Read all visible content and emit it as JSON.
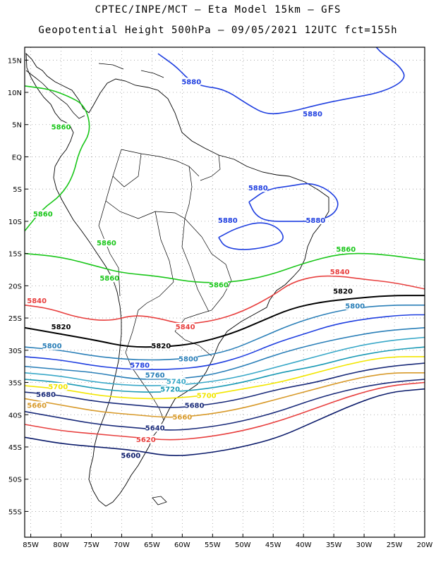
{
  "header": {
    "line1": "CPTEC/INPE/MCT  –  Eta Model 15km  –  GFS",
    "line2": "Geopotential Height 500hPa – 09/05/2021 12UTC fct=155h"
  },
  "axes": {
    "x_ticks": [
      "85W",
      "80W",
      "75W",
      "70W",
      "65W",
      "60W",
      "55W",
      "50W",
      "45W",
      "40W",
      "35W",
      "30W",
      "25W",
      "20W"
    ],
    "y_ticks": [
      "15N",
      "10N",
      "5N",
      "EQ",
      "5S",
      "10S",
      "15S",
      "20S",
      "25S",
      "30S",
      "35S",
      "40S",
      "45S",
      "50S",
      "55S"
    ],
    "lon_range": [
      -86,
      -20
    ],
    "lat_range": [
      17,
      -59
    ]
  },
  "colors": {
    "5880": "#1f3fe0",
    "5860": "#19c619",
    "5840": "#e8403f",
    "5820": "#000000",
    "5800": "#2a7fb8",
    "5780": "#1f3fe0",
    "5760": "#2a7fb8",
    "5740": "#39a8c8",
    "5720": "#1a9ab5",
    "5700": "#f2e600",
    "5680": "#1a2b7a",
    "5660": "#d89a2a",
    "5640": "#1a2b7a",
    "5620": "#e8403f",
    "5600": "#0a1a6a"
  },
  "chart_data": {
    "type": "contour-map",
    "variable": "Geopotential Height 500hPa",
    "contours": [
      {
        "level": 5880,
        "label": "5880",
        "points": [
          [
            -64,
            16
          ],
          [
            -61,
            14
          ],
          [
            -59,
            12
          ],
          [
            -57,
            11
          ],
          [
            -53,
            10.5
          ],
          [
            -49,
            8
          ],
          [
            -46,
            6.5
          ],
          [
            -42,
            7
          ],
          [
            -38,
            8
          ],
          [
            -33,
            9
          ],
          [
            -27,
            10
          ],
          [
            -23,
            12
          ],
          [
            -24,
            14
          ],
          [
            -27,
            16
          ],
          [
            -28,
            17
          ]
        ]
      },
      {
        "level": 5880,
        "label": "5880",
        "points": [
          [
            -49,
            -7
          ],
          [
            -46,
            -5
          ],
          [
            -42,
            -4.5
          ],
          [
            -39,
            -4
          ],
          [
            -36,
            -5
          ],
          [
            -34,
            -7
          ],
          [
            -35,
            -9
          ],
          [
            -38,
            -10
          ],
          [
            -42,
            -10
          ],
          [
            -46,
            -10
          ],
          [
            -48,
            -9
          ],
          [
            -49,
            -7
          ]
        ]
      },
      {
        "level": 5880,
        "label": "5880",
        "points": [
          [
            -54,
            -12.5
          ],
          [
            -51,
            -11
          ],
          [
            -47,
            -10
          ],
          [
            -44,
            -11
          ],
          [
            -43,
            -13
          ],
          [
            -46,
            -14
          ],
          [
            -50,
            -14.5
          ],
          [
            -53,
            -14
          ],
          [
            -54,
            -12.5
          ]
        ]
      },
      {
        "level": 5860,
        "label": "5860",
        "points": [
          [
            -86,
            11
          ],
          [
            -82,
            10.5
          ],
          [
            -79,
            9.5
          ],
          [
            -76,
            8
          ],
          [
            -75,
            4
          ],
          [
            -77,
            1
          ],
          [
            -78,
            -3
          ],
          [
            -80,
            -6
          ],
          [
            -83,
            -8
          ],
          [
            -86,
            -11.5
          ]
        ]
      },
      {
        "level": 5860,
        "label": "5860",
        "points": [
          [
            -86,
            -15
          ],
          [
            -80,
            -15.5
          ],
          [
            -74,
            -17
          ],
          [
            -70,
            -18
          ],
          [
            -64,
            -18.5
          ],
          [
            -58,
            -19.5
          ],
          [
            -52,
            -19.5
          ],
          [
            -46,
            -18.5
          ],
          [
            -40,
            -16.5
          ],
          [
            -34,
            -15
          ],
          [
            -28,
            -15
          ],
          [
            -20,
            -16
          ]
        ]
      },
      {
        "level": 5840,
        "label": "5840",
        "points": [
          [
            -86,
            -23
          ],
          [
            -82,
            -23.5
          ],
          [
            -77,
            -25
          ],
          [
            -72,
            -25.5
          ],
          [
            -68,
            -24.5
          ],
          [
            -64,
            -25
          ],
          [
            -60,
            -26
          ],
          [
            -55,
            -25.5
          ],
          [
            -50,
            -24
          ],
          [
            -45,
            -21.5
          ],
          [
            -42,
            -19.5
          ],
          [
            -38,
            -18.5
          ],
          [
            -34,
            -18.5
          ],
          [
            -30,
            -19
          ],
          [
            -25,
            -19.5
          ],
          [
            -20,
            -20.5
          ]
        ]
      },
      {
        "level": 5820,
        "label": "5820",
        "points": [
          [
            -86,
            -26.5
          ],
          [
            -80,
            -27.5
          ],
          [
            -74,
            -28.5
          ],
          [
            -69,
            -29.5
          ],
          [
            -63,
            -29.5
          ],
          [
            -58,
            -29
          ],
          [
            -52,
            -27.5
          ],
          [
            -47,
            -25.5
          ],
          [
            -42,
            -23.5
          ],
          [
            -37,
            -22.5
          ],
          [
            -32,
            -22
          ],
          [
            -26,
            -21.5
          ],
          [
            -20,
            -21.5
          ]
        ]
      },
      {
        "level": 5800,
        "label": "5800",
        "points": [
          [
            -86,
            -29.5
          ],
          [
            -80,
            -30
          ],
          [
            -74,
            -31
          ],
          [
            -68,
            -31.5
          ],
          [
            -62,
            -31.5
          ],
          [
            -57,
            -31
          ],
          [
            -52,
            -30
          ],
          [
            -47,
            -28
          ],
          [
            -42,
            -26
          ],
          [
            -37,
            -24.5
          ],
          [
            -32,
            -23.5
          ],
          [
            -26,
            -23
          ],
          [
            -20,
            -23
          ]
        ]
      },
      {
        "level": 5780,
        "label": "5780",
        "points": [
          [
            -86,
            -31
          ],
          [
            -80,
            -31.5
          ],
          [
            -74,
            -32.5
          ],
          [
            -68,
            -33
          ],
          [
            -62,
            -33
          ],
          [
            -56,
            -32.5
          ],
          [
            -50,
            -31
          ],
          [
            -45,
            -29
          ],
          [
            -40,
            -27.5
          ],
          [
            -35,
            -26
          ],
          [
            -29,
            -25
          ],
          [
            -23,
            -24.5
          ],
          [
            -20,
            -24.5
          ]
        ]
      },
      {
        "level": 5760,
        "label": "5760",
        "points": [
          [
            -86,
            -32.5
          ],
          [
            -80,
            -33
          ],
          [
            -74,
            -33.5
          ],
          [
            -68,
            -34.5
          ],
          [
            -62,
            -34.5
          ],
          [
            -56,
            -34
          ],
          [
            -50,
            -32.5
          ],
          [
            -44,
            -30.5
          ],
          [
            -38,
            -29
          ],
          [
            -33,
            -28
          ],
          [
            -27,
            -27
          ],
          [
            -20,
            -26.5
          ]
        ]
      },
      {
        "level": 5740,
        "label": "5740",
        "points": [
          [
            -86,
            -33.5
          ],
          [
            -80,
            -34
          ],
          [
            -74,
            -35
          ],
          [
            -68,
            -35.5
          ],
          [
            -62,
            -35.5
          ],
          [
            -56,
            -35
          ],
          [
            -50,
            -34
          ],
          [
            -44,
            -32.5
          ],
          [
            -38,
            -31
          ],
          [
            -32,
            -29.5
          ],
          [
            -26,
            -28.5
          ],
          [
            -20,
            -28
          ]
        ]
      },
      {
        "level": 5720,
        "label": "5720",
        "points": [
          [
            -86,
            -34.5
          ],
          [
            -80,
            -35
          ],
          [
            -74,
            -36
          ],
          [
            -68,
            -36.5
          ],
          [
            -62,
            -36.5
          ],
          [
            -56,
            -36
          ],
          [
            -50,
            -35
          ],
          [
            -44,
            -33.5
          ],
          [
            -38,
            -32.5
          ],
          [
            -32,
            -31
          ],
          [
            -26,
            -30
          ],
          [
            -20,
            -29.5
          ]
        ]
      },
      {
        "level": 5700,
        "label": "5700",
        "points": [
          [
            -86,
            -35.5
          ],
          [
            -80,
            -36
          ],
          [
            -74,
            -37
          ],
          [
            -68,
            -37.5
          ],
          [
            -62,
            -37.5
          ],
          [
            -56,
            -37
          ],
          [
            -50,
            -36
          ],
          [
            -44,
            -35
          ],
          [
            -38,
            -33.5
          ],
          [
            -32,
            -32
          ],
          [
            -26,
            -31
          ],
          [
            -20,
            -31
          ]
        ]
      },
      {
        "level": 5680,
        "label": "5680",
        "points": [
          [
            -86,
            -36.5
          ],
          [
            -80,
            -37
          ],
          [
            -74,
            -38
          ],
          [
            -68,
            -38.5
          ],
          [
            -62,
            -39
          ],
          [
            -56,
            -38.5
          ],
          [
            -50,
            -37.5
          ],
          [
            -44,
            -36
          ],
          [
            -38,
            -35
          ],
          [
            -32,
            -33.5
          ],
          [
            -26,
            -32.5
          ],
          [
            -20,
            -32
          ]
        ]
      },
      {
        "level": 5660,
        "label": "5660",
        "points": [
          [
            -86,
            -37.5
          ],
          [
            -80,
            -38.5
          ],
          [
            -74,
            -39.5
          ],
          [
            -68,
            -40
          ],
          [
            -62,
            -40.5
          ],
          [
            -56,
            -40
          ],
          [
            -50,
            -39
          ],
          [
            -44,
            -37.5
          ],
          [
            -38,
            -36
          ],
          [
            -32,
            -34.5
          ],
          [
            -26,
            -33.5
          ],
          [
            -20,
            -33.5
          ]
        ]
      },
      {
        "level": 5640,
        "label": "5640",
        "points": [
          [
            -86,
            -39.5
          ],
          [
            -80,
            -40.5
          ],
          [
            -74,
            -41.5
          ],
          [
            -68,
            -42
          ],
          [
            -62,
            -42.5
          ],
          [
            -56,
            -42
          ],
          [
            -50,
            -41
          ],
          [
            -44,
            -39.5
          ],
          [
            -38,
            -37.5
          ],
          [
            -32,
            -36
          ],
          [
            -26,
            -35
          ],
          [
            -20,
            -34.5
          ]
        ]
      },
      {
        "level": 5620,
        "label": "5620",
        "points": [
          [
            -86,
            -41.5
          ],
          [
            -80,
            -42.5
          ],
          [
            -74,
            -43
          ],
          [
            -68,
            -43.5
          ],
          [
            -62,
            -44
          ],
          [
            -56,
            -43.5
          ],
          [
            -50,
            -42.5
          ],
          [
            -44,
            -41
          ],
          [
            -38,
            -39
          ],
          [
            -32,
            -37
          ],
          [
            -26,
            -35.5
          ],
          [
            -20,
            -35
          ]
        ]
      },
      {
        "level": 5600,
        "label": "5600",
        "points": [
          [
            -86,
            -43.5
          ],
          [
            -80,
            -44.5
          ],
          [
            -74,
            -45
          ],
          [
            -68,
            -45.5
          ],
          [
            -62,
            -46.5
          ],
          [
            -56,
            -46
          ],
          [
            -50,
            -45
          ],
          [
            -44,
            -43.5
          ],
          [
            -38,
            -41
          ],
          [
            -32,
            -38.5
          ],
          [
            -26,
            -36.5
          ],
          [
            -20,
            -36
          ]
        ]
      }
    ],
    "labels": [
      {
        "text": "5880",
        "lon": -58.5,
        "lat": 11.5,
        "level": 5880
      },
      {
        "text": "5880",
        "lon": -38.5,
        "lat": 6.5,
        "level": 5880
      },
      {
        "text": "5880",
        "lon": -47.5,
        "lat": -5,
        "level": 5880
      },
      {
        "text": "5880",
        "lon": -52.5,
        "lat": -10,
        "level": 5880
      },
      {
        "text": "5880",
        "lon": -38,
        "lat": -10,
        "level": 5880
      },
      {
        "text": "5860",
        "lon": -80,
        "lat": 4.5,
        "level": 5860
      },
      {
        "text": "5860",
        "lon": -83,
        "lat": -9,
        "level": 5860
      },
      {
        "text": "5860",
        "lon": -72.5,
        "lat": -13.5,
        "level": 5860
      },
      {
        "text": "5860",
        "lon": -72,
        "lat": -19,
        "level": 5860
      },
      {
        "text": "5860",
        "lon": -54,
        "lat": -20,
        "level": 5860
      },
      {
        "text": "5860",
        "lon": -33,
        "lat": -14.5,
        "level": 5860
      },
      {
        "text": "5840",
        "lon": -84,
        "lat": -22.5,
        "level": 5840
      },
      {
        "text": "5840",
        "lon": -59.5,
        "lat": -26.5,
        "level": 5840
      },
      {
        "text": "5840",
        "lon": -34,
        "lat": -18,
        "level": 5840
      },
      {
        "text": "5820",
        "lon": -80,
        "lat": -26.5,
        "level": 5820
      },
      {
        "text": "5820",
        "lon": -63.5,
        "lat": -29.5,
        "level": 5820
      },
      {
        "text": "5820",
        "lon": -33.5,
        "lat": -21,
        "level": 5820
      },
      {
        "text": "5800",
        "lon": -81.5,
        "lat": -29.5,
        "level": 5800
      },
      {
        "text": "5800",
        "lon": -59,
        "lat": -31.5,
        "level": 5800
      },
      {
        "text": "5800",
        "lon": -31.5,
        "lat": -23.3,
        "level": 5800
      },
      {
        "text": "5780",
        "lon": -67,
        "lat": -32.5,
        "level": 5780
      },
      {
        "text": "5760",
        "lon": -64.5,
        "lat": -34,
        "level": 5760
      },
      {
        "text": "5740",
        "lon": -61,
        "lat": -35,
        "level": 5740
      },
      {
        "text": "5720",
        "lon": -62,
        "lat": -36.2,
        "level": 5720
      },
      {
        "text": "5700",
        "lon": -80.5,
        "lat": -35.8,
        "level": 5700
      },
      {
        "text": "5700",
        "lon": -56,
        "lat": -37.2,
        "level": 5700
      },
      {
        "text": "5680",
        "lon": -82.5,
        "lat": -37,
        "level": 5680
      },
      {
        "text": "5680",
        "lon": -58,
        "lat": -38.7,
        "level": 5680
      },
      {
        "text": "5660",
        "lon": -84,
        "lat": -38.7,
        "level": 5660
      },
      {
        "text": "5660",
        "lon": -60,
        "lat": -40.5,
        "level": 5660
      },
      {
        "text": "5640",
        "lon": -64.5,
        "lat": -42.2,
        "level": 5640
      },
      {
        "text": "5620",
        "lon": -66,
        "lat": -44,
        "level": 5620
      },
      {
        "text": "5600",
        "lon": -68.5,
        "lat": -46.5,
        "level": 5600
      }
    ]
  }
}
